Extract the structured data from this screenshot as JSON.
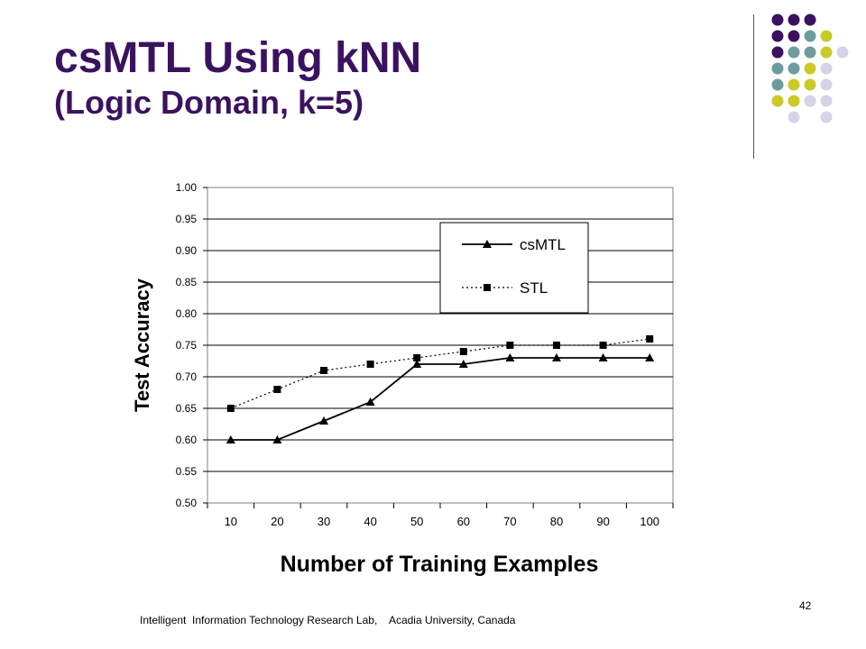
{
  "slide": {
    "title_line1": "csMTL Using kNN",
    "title_line2": "(Logic Domain, k=5)",
    "footer": "Intelligent  Information Technology Research Lab,    Acadia University, Canada",
    "page_number": "42",
    "title_color": "#3b1260"
  },
  "decor": {
    "colors": {
      "purple": "#3b1260",
      "teal": "#6e9c9c",
      "olive": "#c9c928",
      "lavender": "#d5d3e8"
    },
    "rows": [
      [
        "purple",
        "purple",
        "purple",
        "",
        ""
      ],
      [
        "purple",
        "purple",
        "teal",
        "olive",
        ""
      ],
      [
        "purple",
        "teal",
        "teal",
        "olive",
        "lavender"
      ],
      [
        "teal",
        "teal",
        "olive",
        "lavender",
        ""
      ],
      [
        "teal",
        "olive",
        "olive",
        "lavender",
        ""
      ],
      [
        "olive",
        "olive",
        "lavender",
        "lavender",
        ""
      ],
      [
        "",
        "lavender",
        "",
        "lavender",
        ""
      ]
    ]
  },
  "chart_data": {
    "type": "line",
    "title": "",
    "xlabel": "Number of Training Examples",
    "ylabel": "Test Accuracy",
    "categories": [
      "10",
      "20",
      "30",
      "40",
      "50",
      "60",
      "70",
      "80",
      "90",
      "100"
    ],
    "ylim": [
      0.5,
      1.0
    ],
    "yticks": [
      "0.50",
      "0.55",
      "0.60",
      "0.65",
      "0.70",
      "0.75",
      "0.80",
      "0.85",
      "0.90",
      "0.95",
      "1.00"
    ],
    "grid": true,
    "legend_position": "top-right",
    "series": [
      {
        "name": "csMTL",
        "marker": "triangle",
        "line": "solid",
        "values": [
          0.6,
          0.6,
          0.63,
          0.66,
          0.72,
          0.72,
          0.73,
          0.73,
          0.73,
          0.73
        ]
      },
      {
        "name": "STL",
        "marker": "square",
        "line": "dotted",
        "values": [
          0.65,
          0.68,
          0.71,
          0.72,
          0.73,
          0.74,
          0.75,
          0.75,
          0.75,
          0.76
        ]
      }
    ]
  }
}
